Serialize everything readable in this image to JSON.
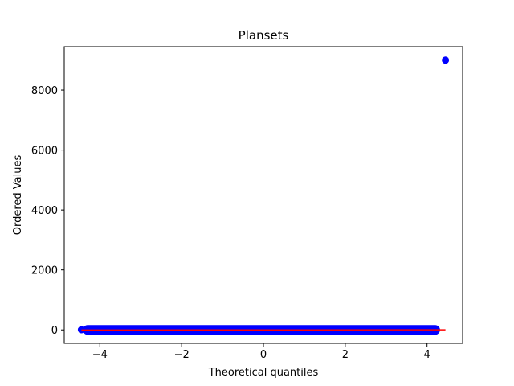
{
  "chart_data": {
    "type": "scatter",
    "title": "Plansets",
    "xlabel": "Theoretical quantiles",
    "ylabel": "Ordered Values",
    "xlim": [
      -4.87,
      4.87
    ],
    "ylim": [
      -450,
      9450
    ],
    "x_ticks": [
      -4,
      -2,
      0,
      2,
      4
    ],
    "x_tick_labels": [
      "−4",
      "−2",
      "0",
      "2",
      "4"
    ],
    "y_ticks": [
      0,
      2000,
      4000,
      6000,
      8000
    ],
    "y_tick_labels": [
      "0",
      "2000",
      "4000",
      "6000",
      "8000"
    ],
    "grid": false,
    "series": [
      {
        "color": "#0000ff",
        "marker": "circle",
        "points": [
          {
            "x": -4.45,
            "y": 5
          },
          {
            "x": -4.2,
            "y": 10
          },
          {
            "x": -3.5,
            "y": 12
          },
          {
            "x": 0,
            "y": 12
          },
          {
            "x": 3.5,
            "y": 12
          },
          {
            "x": 4.05,
            "y": 10
          },
          {
            "x": 4.2,
            "y": 5
          },
          {
            "x": 4.45,
            "y": 9000
          }
        ],
        "dense_band": {
          "x_from": -4.3,
          "x_to": 4.2,
          "y": 0
        }
      }
    ],
    "fit_line": {
      "color": "#ff0000",
      "x_from": -4.45,
      "x_to": 4.45,
      "y_from": -4,
      "y_to": 4
    }
  }
}
